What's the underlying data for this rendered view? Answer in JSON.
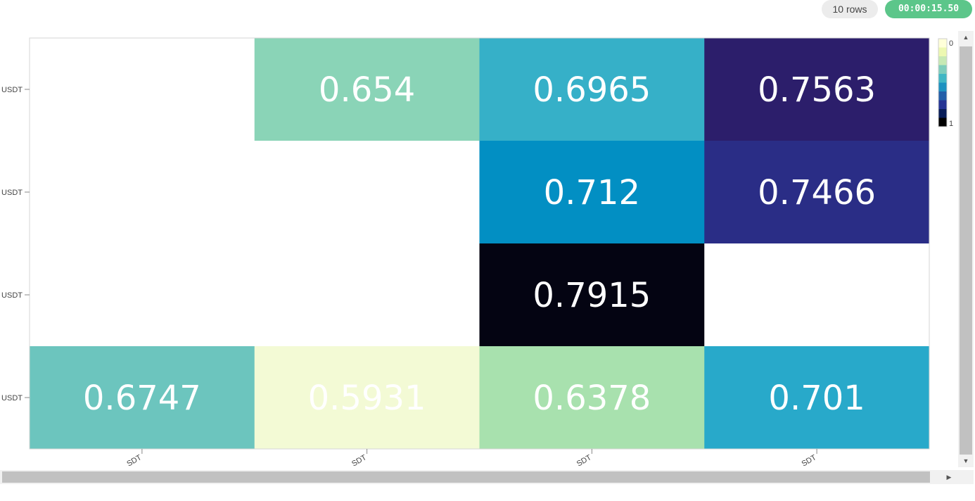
{
  "toolbar": {
    "rows_label": "10 rows",
    "elapsed": "00:00:15.50"
  },
  "colors": {
    "grid_border": "#d6d6d6",
    "axis": "#888888",
    "cell_text": "#ffffff",
    "empty_cell": "#ffffff"
  },
  "chart_data": {
    "type": "heatmap",
    "x_tick_labels": [
      "SDT",
      "SDT",
      "SDT",
      "SDT"
    ],
    "y_tick_labels": [
      "USDT",
      "USDT",
      "USDT",
      "USDT"
    ],
    "values": [
      [
        null,
        0.654,
        0.6965,
        0.7563
      ],
      [
        null,
        null,
        0.712,
        0.7466
      ],
      [
        null,
        null,
        0.7915,
        null
      ],
      [
        0.6747,
        0.5931,
        0.6378,
        0.701
      ]
    ],
    "cell_colors": [
      [
        null,
        "#8ad4b7",
        "#36b0c8",
        "#2c1e6b"
      ],
      [
        null,
        null,
        "#028fc3",
        "#2a2d86"
      ],
      [
        null,
        null,
        "#040412",
        null
      ],
      [
        "#6cc5be",
        "#f3fad5",
        "#a8e1ae",
        "#28a9ca"
      ]
    ],
    "colorbar": {
      "tick_labels": [
        "0",
        "1"
      ],
      "colors": [
        "#ffffd9",
        "#edf8b1",
        "#c7e9b4",
        "#7fcdbb",
        "#41b6c4",
        "#1d91c0",
        "#225ea8",
        "#253494",
        "#081d58",
        "#000000"
      ]
    }
  }
}
